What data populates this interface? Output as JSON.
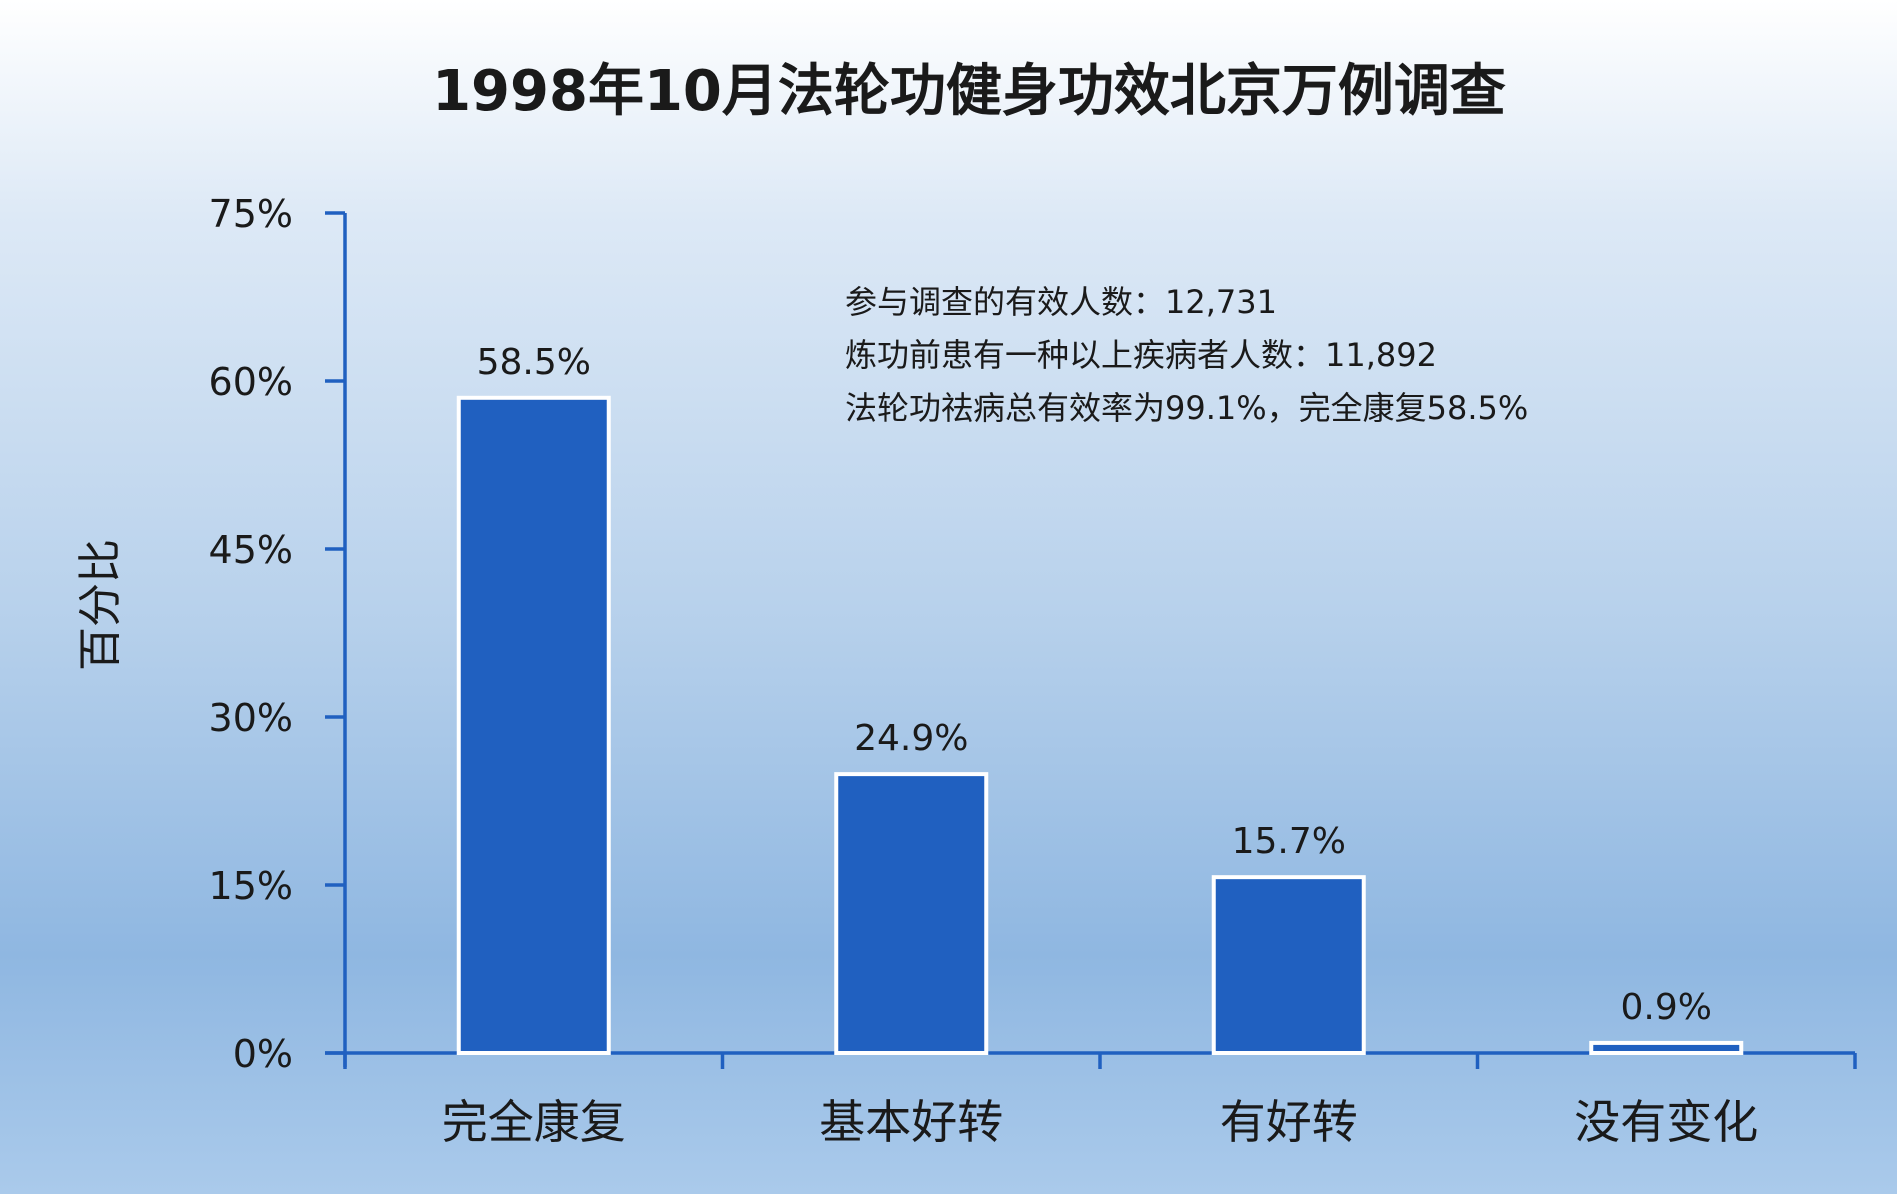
{
  "chart_data": {
    "type": "bar",
    "title": "1998年10月法轮功健身功效北京万例调查",
    "ylabel": "百分比",
    "xlabel": "",
    "categories": [
      "完全康复",
      "基本好转",
      "有好转",
      "没有变化"
    ],
    "values": [
      58.5,
      24.9,
      15.7,
      0.9
    ],
    "value_labels": [
      "58.5%",
      "24.9%",
      "15.7%",
      "0.9%"
    ],
    "ylim": [
      0,
      75
    ],
    "yticks": [
      0,
      15,
      30,
      45,
      60,
      75
    ],
    "ytick_labels": [
      "0%",
      "15%",
      "30%",
      "45%",
      "60%",
      "75%"
    ],
    "grid": false,
    "bar_color": "#2060c0",
    "bar_edge_color": "#ffffff",
    "axis_color": "#2060c0",
    "annotations": [
      "参与调查的有效人数：12,731",
      "炼功前患有一种以上疾病者人数：11,892",
      "法轮功祛病总有效率为99.1%，完全康复58.5%"
    ]
  }
}
